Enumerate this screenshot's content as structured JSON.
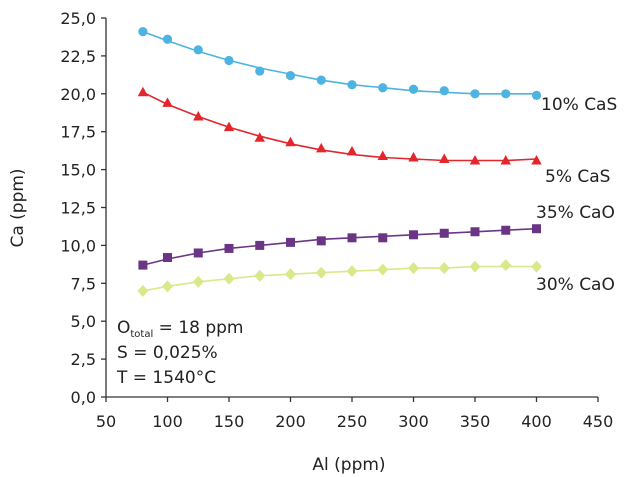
{
  "chart_data": {
    "type": "line",
    "xlabel": "Al (ppm)",
    "ylabel": "Ca (ppm)",
    "xlim": [
      50,
      450
    ],
    "ylim": [
      0,
      25
    ],
    "x_ticks": [
      50,
      100,
      150,
      200,
      250,
      300,
      350,
      400,
      450
    ],
    "x_tick_labels": [
      "50",
      "100",
      "150",
      "200",
      "250",
      "300",
      "350",
      "400",
      "450"
    ],
    "y_ticks": [
      0,
      2.5,
      5,
      7.5,
      10,
      12.5,
      15,
      17.5,
      20,
      22.5,
      25
    ],
    "y_tick_labels": [
      "0,0",
      "2,5",
      "5,0",
      "7,5",
      "10,0",
      "12,5",
      "15,0",
      "17,5",
      "20,0",
      "22,5",
      "25,0"
    ],
    "grid": false,
    "legend": "none",
    "x": [
      80,
      100,
      125,
      150,
      175,
      200,
      225,
      250,
      275,
      300,
      325,
      350,
      375,
      400
    ],
    "series": [
      {
        "name": "10% CaS",
        "color": "#4db3e0",
        "marker": "circle",
        "values": [
          24.1,
          23.6,
          22.9,
          22.2,
          21.5,
          21.2,
          20.9,
          20.6,
          20.4,
          20.3,
          20.2,
          20.0,
          20.0,
          19.9
        ],
        "fit": [
          24.1,
          23.5,
          22.8,
          22.2,
          21.7,
          21.3,
          20.9,
          20.6,
          20.4,
          20.2,
          20.1,
          20.0,
          20.0,
          20.0
        ]
      },
      {
        "name": "5% CaS",
        "color": "#e4262c",
        "marker": "triangle",
        "values": [
          20.1,
          19.4,
          18.5,
          17.8,
          17.1,
          16.8,
          16.4,
          16.2,
          15.9,
          15.8,
          15.7,
          15.6,
          15.6,
          15.6
        ],
        "fit": [
          20.1,
          19.3,
          18.5,
          17.8,
          17.2,
          16.7,
          16.3,
          16.0,
          15.8,
          15.7,
          15.6,
          15.6,
          15.6,
          15.7
        ]
      },
      {
        "name": "35% CaO",
        "color": "#6b3586",
        "marker": "square",
        "values": [
          8.7,
          9.2,
          9.5,
          9.8,
          10.0,
          10.2,
          10.3,
          10.5,
          10.5,
          10.7,
          10.8,
          10.9,
          11.0,
          11.1
        ],
        "fit": [
          8.7,
          9.1,
          9.5,
          9.8,
          10.0,
          10.2,
          10.4,
          10.5,
          10.6,
          10.7,
          10.8,
          10.9,
          11.0,
          11.1
        ]
      },
      {
        "name": "30% CaO",
        "color": "#d8e98a",
        "marker": "diamond",
        "values": [
          7.0,
          7.3,
          7.6,
          7.8,
          8.0,
          8.1,
          8.2,
          8.3,
          8.4,
          8.5,
          8.5,
          8.6,
          8.7,
          8.6
        ],
        "fit": [
          7.0,
          7.3,
          7.6,
          7.8,
          8.0,
          8.1,
          8.2,
          8.3,
          8.4,
          8.5,
          8.5,
          8.6,
          8.6,
          8.6
        ]
      }
    ],
    "annotations": {
      "line1_main": "O",
      "line1_sub": "total",
      "line1_rest": " = 18 ppm",
      "line2": "S = 0,025%",
      "line3": "T = 1540°C"
    }
  }
}
